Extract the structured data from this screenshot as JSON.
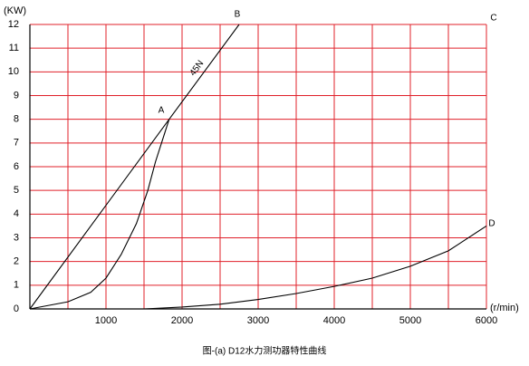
{
  "chart_data": {
    "type": "line",
    "y_label": "(KW)",
    "x_label": "(r/min)",
    "caption": "图-(a) D12水力测功器特性曲线",
    "xlim": [
      0,
      6000
    ],
    "ylim": [
      0,
      12
    ],
    "xticks": [
      1000,
      2000,
      3000,
      4000,
      5000,
      6000
    ],
    "yticks": [
      0,
      1,
      2,
      3,
      4,
      5,
      6,
      7,
      8,
      9,
      10,
      11,
      12
    ],
    "x_minor_grid": [
      500,
      1500,
      2500,
      3500,
      4500,
      5500
    ],
    "grid": true,
    "grid_color": "#e0202a",
    "series": [
      {
        "name": "45N",
        "color": "#000000",
        "x": [
          0,
          1830,
          2750
        ],
        "values": [
          0,
          8,
          12
        ]
      },
      {
        "color": "#000000",
        "x": [
          0,
          500,
          800,
          1000,
          1200,
          1400,
          1550,
          1650,
          1750,
          1830
        ],
        "values": [
          0,
          0.3,
          0.7,
          1.3,
          2.3,
          3.6,
          5,
          6.2,
          7.2,
          8
        ]
      },
      {
        "color": "#000000",
        "x": [
          1500,
          2000,
          2500,
          3000,
          3500,
          4000,
          4500,
          5000,
          5500,
          6000
        ],
        "values": [
          0,
          0.08,
          0.2,
          0.4,
          0.65,
          0.95,
          1.3,
          1.8,
          2.45,
          3.5
        ]
      }
    ],
    "annotations": [
      "A",
      "B",
      "C",
      "D"
    ]
  }
}
